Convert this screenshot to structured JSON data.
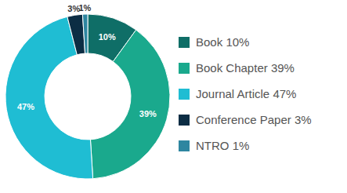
{
  "chart_data": {
    "type": "pie",
    "categories": [
      "Book",
      "Book Chapter",
      "Journal Article",
      "Conference Paper",
      "NTRO"
    ],
    "values": [
      10,
      39,
      47,
      3,
      1
    ],
    "value_labels": [
      "10%",
      "39%",
      "47%",
      "3%",
      "1%"
    ],
    "colors": [
      "#0f6e67",
      "#1aa98d",
      "#1fbdd3",
      "#0c2d44",
      "#2e86a0"
    ],
    "data_labels": true,
    "legend": "right"
  }
}
